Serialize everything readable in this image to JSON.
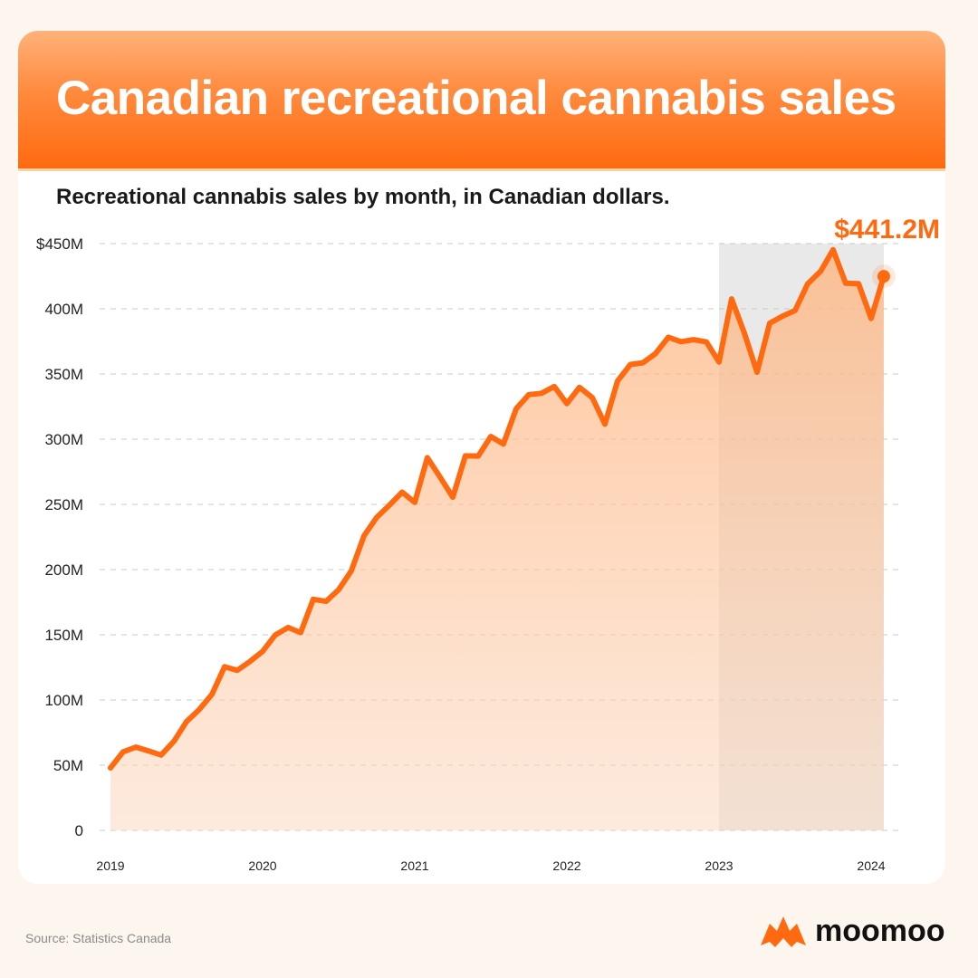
{
  "header": {
    "title": "Canadian recreational cannabis sales"
  },
  "subtitle": "Recreational cannabis sales by month, in Canadian dollars.",
  "footer": {
    "source": "Source: Statistics Canada",
    "brand": "moomoo"
  },
  "colors": {
    "accent": "#ff6a10",
    "grid": "#c9c9c9",
    "highlight_band": "#e9e9e9"
  },
  "chart_data": {
    "type": "line",
    "callout": "$441.2M",
    "ylim": [
      0,
      450
    ],
    "y_ticks": [
      {
        "value": 0,
        "label": "0"
      },
      {
        "value": 50,
        "label": "50M"
      },
      {
        "value": 100,
        "label": "100M"
      },
      {
        "value": 150,
        "label": "150M"
      },
      {
        "value": 200,
        "label": "200M"
      },
      {
        "value": 250,
        "label": "250M"
      },
      {
        "value": 300,
        "label": "300M"
      },
      {
        "value": 350,
        "label": "350M"
      },
      {
        "value": 400,
        "label": "400M"
      },
      {
        "value": 450,
        "label": "$450M"
      }
    ],
    "x_ticks": [
      {
        "value": 2019.0,
        "label": "2019"
      },
      {
        "value": 2020.0,
        "label": "2020"
      },
      {
        "value": 2021.0,
        "label": "2021"
      },
      {
        "value": 2022.0,
        "label": "2022"
      },
      {
        "value": 2023.0,
        "label": "2023"
      },
      {
        "value": 2024.0,
        "label": "2024"
      }
    ],
    "xlim": [
      2019.0,
      2024.0
    ],
    "highlight_range": [
      2023.0,
      2024.083
    ],
    "series": [
      {
        "x": [
          2019.0,
          2019.083,
          2019.167,
          2019.25,
          2019.333,
          2019.417,
          2019.5,
          2019.583,
          2019.667,
          2019.75,
          2019.833,
          2019.917,
          2020.0,
          2020.083,
          2020.167,
          2020.25,
          2020.333,
          2020.417,
          2020.5,
          2020.583,
          2020.667,
          2020.75,
          2020.833,
          2020.917,
          2021.0,
          2021.083,
          2021.167,
          2021.25,
          2021.333,
          2021.417,
          2021.5,
          2021.583,
          2021.667,
          2021.75,
          2021.833,
          2021.917,
          2022.0,
          2022.083,
          2022.167,
          2022.25,
          2022.333,
          2022.417,
          2022.5,
          2022.583,
          2022.667,
          2022.75,
          2022.833,
          2022.917,
          2023.0,
          2023.083,
          2023.167,
          2023.25,
          2023.333,
          2023.417,
          2023.5,
          2023.583,
          2023.667,
          2023.75,
          2023.833,
          2023.917,
          2024.0,
          2024.083
        ],
        "values": [
          47.9,
          60.2,
          63.9,
          61,
          57.8,
          68.3,
          83.5,
          92.6,
          104.4,
          125.5,
          122.7,
          129.6,
          137.3,
          149.8,
          155.6,
          151.7,
          177.2,
          175.6,
          184.6,
          199,
          226.1,
          240.1,
          249.3,
          259.4,
          251.5,
          285.8,
          270.8,
          255.5,
          287.2,
          287.1,
          302.1,
          296.3,
          323.5,
          334.2,
          335.2,
          340.4,
          327.3,
          339.8,
          331.9,
          311.5,
          344.6,
          357.3,
          358.6,
          365.7,
          378.2,
          374.8,
          376.3,
          374.6,
          359.2,
          407.6,
          381.2,
          351.3,
          388.9,
          394.4,
          398.7,
          419.2,
          428.7,
          445.3,
          419.6,
          419.3,
          392.6,
          424.9
        ]
      }
    ]
  }
}
